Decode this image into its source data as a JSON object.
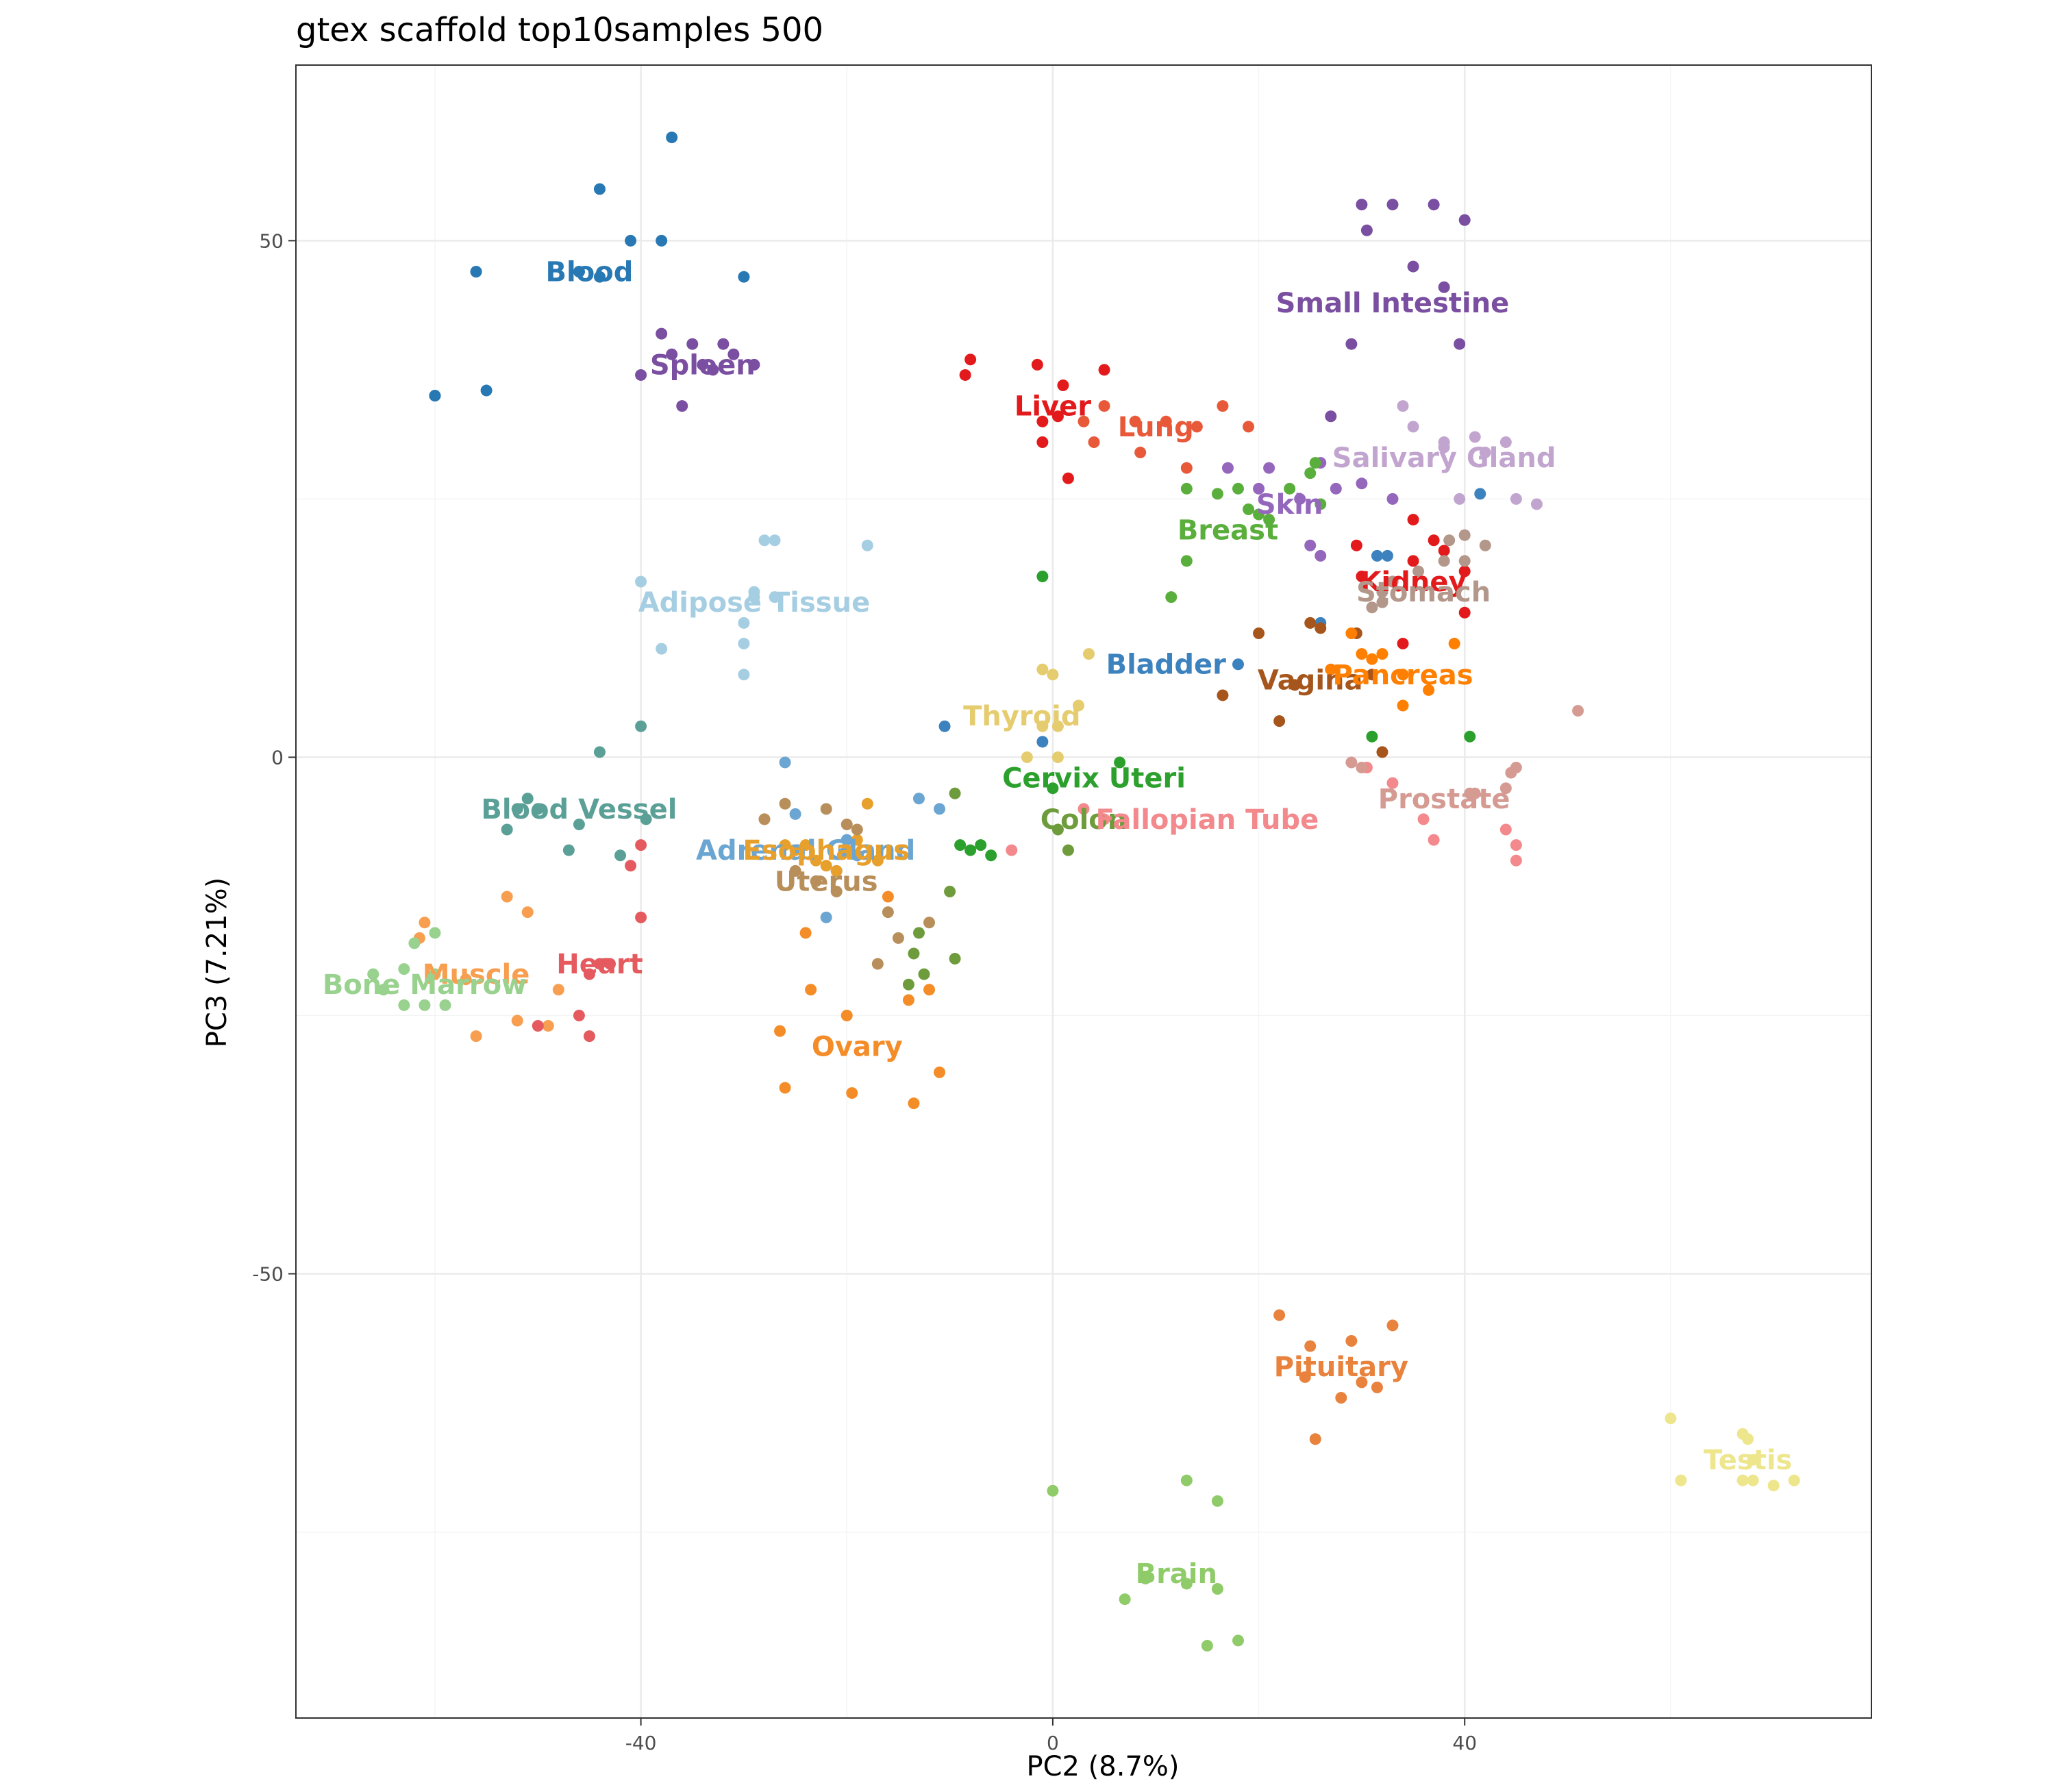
{
  "chart_data": {
    "type": "scatter",
    "title": "gtex scaffold top10samples 500",
    "xlabel": "PC2 (8.7%)",
    "ylabel": "PC3 (7.21%)",
    "xlim": [
      -73.5,
      79.5
    ],
    "ylim": [
      -93,
      67
    ],
    "x_major_ticks": [
      -40,
      0,
      40
    ],
    "x_tick_labels": [
      "-40",
      "0",
      "40"
    ],
    "y_major_ticks": [
      -50,
      0,
      50
    ],
    "y_tick_labels": [
      "-50",
      "0",
      "50"
    ],
    "x_minor_ticks": [
      -60,
      -20,
      20,
      60
    ],
    "y_minor_ticks": [
      -75,
      -25,
      25
    ],
    "grid": true,
    "legend": "none",
    "series": [
      {
        "name": "Blood",
        "color": "#2878B4",
        "label": [
          -45,
          47
        ],
        "x": [
          -56,
          -60,
          -46,
          -44,
          -41,
          -38,
          -37,
          -44,
          -30,
          -56,
          -55,
          -60,
          -46
        ],
        "y": [
          47,
          35,
          47,
          55,
          50,
          50,
          60,
          46.5,
          46.5,
          47,
          35.5,
          35,
          47
        ]
      },
      {
        "name": "Spleen",
        "color": "#7A4EA0",
        "label": [
          -34,
          38
        ],
        "x": [
          -38,
          -35,
          -32,
          -37,
          -34,
          -33,
          -29,
          -40,
          -36,
          -31
        ],
        "y": [
          41,
          40,
          40,
          39,
          38,
          37.5,
          38,
          37,
          34,
          39
        ]
      },
      {
        "name": "Small Intestine",
        "color": "#7A4EA0",
        "label": [
          33,
          44
        ],
        "x": [
          30,
          33,
          37,
          30.5,
          35,
          38,
          39.5,
          29,
          27,
          40
        ],
        "y": [
          53.5,
          53.5,
          53.5,
          51,
          47.5,
          45.5,
          40,
          40,
          33,
          52
        ]
      },
      {
        "name": "Liver",
        "color": "#E31A1C",
        "label": [
          0,
          34
        ],
        "x": [
          -8,
          -8.5,
          -1.5,
          1,
          5,
          -1,
          -1,
          1.5,
          0.5
        ],
        "y": [
          38.5,
          37,
          38,
          36,
          37.5,
          32.5,
          30.5,
          27,
          33
        ]
      },
      {
        "name": "Lung",
        "color": "#E8593A",
        "label": [
          10,
          32
        ],
        "x": [
          5,
          8,
          11,
          14,
          16.5,
          19,
          3,
          4,
          8.5,
          13
        ],
        "y": [
          34,
          32.5,
          32.5,
          32,
          34,
          32,
          32.5,
          30.5,
          29.5,
          28
        ]
      },
      {
        "name": "Salivary Gland",
        "color": "#C2A5CF",
        "label": [
          38,
          29
        ],
        "x": [
          34,
          35,
          38,
          41,
          44,
          47,
          45,
          38,
          39.5,
          42
        ],
        "y": [
          34,
          32,
          30.5,
          31,
          30.5,
          24.5,
          25,
          30,
          25,
          29.5
        ]
      },
      {
        "name": "Skin",
        "color": "#9467BD",
        "label": [
          23,
          24.5
        ],
        "x": [
          17,
          21,
          26,
          30,
          20,
          24,
          26,
          25,
          33,
          27.5
        ],
        "y": [
          28,
          28,
          28.5,
          26.5,
          26,
          25,
          19.5,
          20.5,
          25,
          26
        ]
      },
      {
        "name": "Breast",
        "color": "#5AAF3C",
        "label": [
          17,
          22
        ],
        "x": [
          13,
          16,
          18,
          19,
          25,
          25.5,
          23,
          20,
          13,
          11.5,
          26,
          21
        ],
        "y": [
          26,
          25.5,
          26,
          24,
          27.5,
          28.5,
          26,
          23.5,
          19,
          15.5,
          24.5,
          23
        ]
      },
      {
        "name": "Kidney",
        "color": "#E31A1C",
        "label": [
          35,
          17
        ],
        "x": [
          35,
          37,
          38,
          40,
          33,
          34,
          29.5,
          30,
          40,
          35
        ],
        "y": [
          23,
          21,
          20,
          18,
          17,
          11,
          20.5,
          17.5,
          14,
          19
        ]
      },
      {
        "name": "Stomach",
        "color": "#B3978B",
        "label": [
          36,
          16
        ],
        "x": [
          38.5,
          40,
          42,
          40,
          32,
          32,
          31,
          35.5,
          38,
          33
        ],
        "y": [
          21,
          21.5,
          20.5,
          19,
          16,
          15,
          14.5,
          18,
          19,
          17
        ]
      },
      {
        "name": "Adipose Tissue",
        "color": "#A6CEE3",
        "label": [
          -29,
          15
        ],
        "x": [
          -28,
          -27,
          -18,
          -40,
          -29,
          -30,
          -30,
          -30,
          -38,
          -29,
          -27
        ],
        "y": [
          21,
          21,
          20.5,
          17,
          16,
          13,
          11,
          8,
          10.5,
          15.5,
          15.5
        ]
      },
      {
        "name": "Bladder",
        "color": "#3C82BE",
        "label": [
          11,
          9
        ],
        "x": [
          18,
          -10.5,
          -1,
          26,
          41.5,
          31.5,
          32.5
        ],
        "y": [
          9,
          3,
          1.5,
          13,
          25.5,
          19.5,
          19.5
        ]
      },
      {
        "name": "Vagina",
        "color": "#A6561C",
        "label": [
          25,
          7.5
        ],
        "x": [
          20,
          16.5,
          23.5,
          22,
          29.5,
          31,
          32,
          25,
          26
        ],
        "y": [
          12,
          6,
          7,
          3.5,
          12,
          8,
          0.5,
          13,
          12.5
        ]
      },
      {
        "name": "Pancreas",
        "color": "#FF7F00",
        "label": [
          34,
          8
        ],
        "x": [
          29,
          30,
          31,
          32,
          34,
          36.5,
          39,
          34,
          27
        ],
        "y": [
          12,
          10,
          9.5,
          10,
          8,
          6.5,
          11,
          5,
          8.5
        ]
      },
      {
        "name": "Thyroid",
        "color": "#E5CC6E",
        "label": [
          -3,
          4
        ],
        "x": [
          -1,
          0,
          3.5,
          2.5,
          -1,
          0.5,
          -2.5,
          0.5
        ],
        "y": [
          8.5,
          8,
          10,
          5,
          3,
          3,
          0,
          0
        ]
      },
      {
        "name": "Cervix Uteri",
        "color": "#2CA02C",
        "label": [
          4,
          -2
        ],
        "x": [
          6.5,
          40.5,
          31,
          -1,
          0,
          -7,
          -6,
          -8,
          -9
        ],
        "y": [
          -0.5,
          2,
          2,
          17.5,
          -3,
          -8.5,
          -9.5,
          -9,
          -8.5
        ]
      },
      {
        "name": "Colon",
        "color": "#6E9C3C",
        "label": [
          3,
          -6
        ],
        "x": [
          -9.5,
          0.5,
          1.5,
          -10,
          -13,
          -13.5,
          -12.5,
          -9.5,
          -14
        ],
        "y": [
          -3.5,
          -7,
          -9,
          -13,
          -17,
          -19,
          -21,
          -19.5,
          -22
        ]
      },
      {
        "name": "Fallopian Tube",
        "color": "#F3898C",
        "label": [
          15,
          -6
        ],
        "x": [
          -4,
          3,
          5,
          30.5,
          33,
          36,
          37,
          44,
          45,
          45
        ],
        "y": [
          -9,
          -5,
          -6,
          -1,
          -2.5,
          -6,
          -8,
          -7,
          -8.5,
          -10
        ]
      },
      {
        "name": "Prostate",
        "color": "#D59B93",
        "label": [
          38,
          -4
        ],
        "x": [
          51,
          44.5,
          45,
          40.5,
          41,
          44,
          30,
          29
        ],
        "y": [
          4.5,
          -1.5,
          -1,
          -3.5,
          -3.5,
          -3,
          -1,
          -0.5
        ]
      },
      {
        "name": "Blood Vessel",
        "color": "#5AA096",
        "label": [
          -46,
          -5
        ],
        "x": [
          -51,
          -52,
          -50,
          -46,
          -53,
          -47,
          -39.5,
          -42,
          -44,
          -40
        ],
        "y": [
          -4,
          -5,
          -5,
          -6.5,
          -7,
          -9,
          -6,
          -9.5,
          0.5,
          3
        ]
      },
      {
        "name": "Adrenal Gland",
        "color": "#6BA5D2",
        "label": [
          -24,
          -9
        ],
        "x": [
          -26,
          -25,
          -20,
          -19,
          -21,
          -13,
          -11,
          -22
        ],
        "y": [
          -0.5,
          -5.5,
          -8,
          -9.5,
          -11,
          -4,
          -5,
          -15.5
        ]
      },
      {
        "name": "Esophagus",
        "color": "#E8A02C",
        "label": [
          -22,
          -9
        ],
        "x": [
          -28,
          -26,
          -25,
          -24,
          -23,
          -22,
          -21,
          -20,
          -19,
          -18,
          -17
        ],
        "y": [
          -6,
          -8.5,
          -9,
          -8.5,
          -10,
          -10.5,
          -11,
          -9,
          -8,
          -4.5,
          -10
        ]
      },
      {
        "name": "Uterus",
        "color": "#B88F5B",
        "label": [
          -22,
          -12
        ],
        "x": [
          -28,
          -26,
          -22,
          -20,
          -19,
          -16,
          -12,
          -25,
          -23,
          -21,
          -17,
          -15
        ],
        "y": [
          -6,
          -4.5,
          -5,
          -6.5,
          -7,
          -15,
          -16,
          -11,
          -12,
          -13,
          -20,
          -17.5
        ]
      },
      {
        "name": "Ovary",
        "color": "#F48C28",
        "label": [
          -19,
          -28
        ],
        "x": [
          -23.5,
          -20,
          -14,
          -12,
          -26.5,
          -26,
          -19.5,
          -13.5,
          -11,
          -16,
          -24
        ],
        "y": [
          -22.5,
          -25,
          -23.5,
          -22.5,
          -26.5,
          -32,
          -32.5,
          -33.5,
          -30.5,
          -13.5,
          -17
        ]
      },
      {
        "name": "Muscle",
        "color": "#F89E50",
        "label": [
          -56,
          -21
        ],
        "x": [
          -61,
          -61.5,
          -53,
          -51,
          -48,
          -52,
          -56,
          -49,
          -57
        ],
        "y": [
          -16,
          -17.5,
          -13.5,
          -15,
          -22.5,
          -25.5,
          -27,
          -26,
          -21.5
        ]
      },
      {
        "name": "Heart",
        "color": "#E45A5E",
        "label": [
          -44,
          -20
        ],
        "x": [
          -40,
          -41,
          -40,
          -43,
          -45,
          -46,
          -50,
          -45,
          -44
        ],
        "y": [
          -8.5,
          -10.5,
          -15.5,
          -20,
          -21,
          -25,
          -26,
          -27,
          -20
        ]
      },
      {
        "name": "Bone Marrow",
        "color": "#99D18F",
        "label": [
          -61,
          -22
        ],
        "x": [
          -66,
          -65,
          -63,
          -60,
          -62,
          -63,
          -59,
          -61,
          -60
        ],
        "y": [
          -21,
          -22.5,
          -20.5,
          -17,
          -18,
          -24,
          -24,
          -24,
          -21
        ]
      },
      {
        "name": "Pituitary",
        "color": "#E8823C",
        "label": [
          28,
          -59
        ],
        "x": [
          22,
          25,
          29,
          33,
          24.5,
          28,
          31.5,
          30,
          25.5
        ],
        "y": [
          -54,
          -57,
          -56.5,
          -55,
          -60,
          -62,
          -61,
          -60.5,
          -66
        ]
      },
      {
        "name": "Brain",
        "color": "#90CB6A",
        "label": [
          12,
          -79
        ],
        "x": [
          0,
          13,
          16,
          13,
          16,
          7,
          9,
          15,
          18
        ],
        "y": [
          -71,
          -70,
          -72,
          -80,
          -80.5,
          -81.5,
          -79.5,
          -86,
          -85.5
        ]
      },
      {
        "name": "Testis",
        "color": "#EEE68C",
        "label": [
          67.5,
          -68
        ],
        "x": [
          60,
          67,
          67.5,
          68,
          61,
          67,
          68,
          70,
          72
        ],
        "y": [
          -64,
          -65.5,
          -66,
          -68,
          -70,
          -70,
          -70,
          -70.5,
          -70
        ]
      }
    ]
  }
}
